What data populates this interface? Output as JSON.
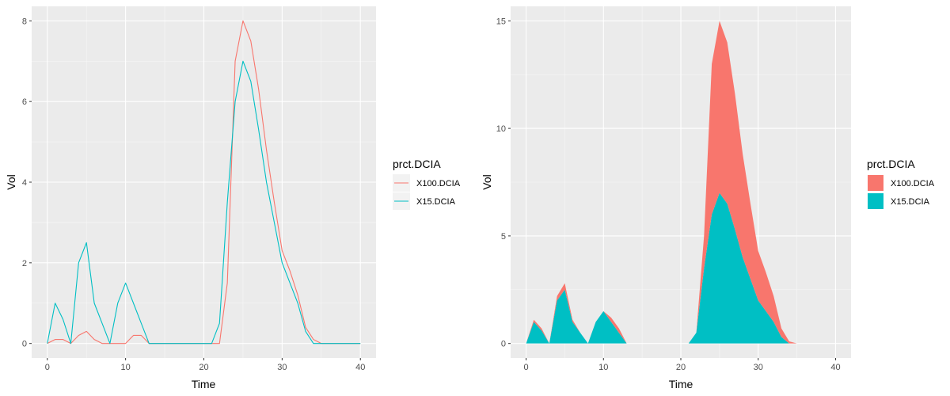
{
  "chart_data": [
    {
      "type": "line",
      "xlabel": "Time",
      "ylabel": "Vol",
      "xlim": [
        0,
        40
      ],
      "ylim": [
        0,
        8
      ],
      "xticks": [
        0,
        10,
        20,
        30,
        40
      ],
      "yticks": [
        0,
        2,
        4,
        6,
        8
      ],
      "grid": true,
      "legend": {
        "title": "prct.DCIA",
        "placement": "right"
      },
      "x": [
        0,
        1,
        2,
        3,
        4,
        5,
        6,
        7,
        8,
        9,
        10,
        11,
        12,
        13,
        14,
        15,
        16,
        17,
        18,
        19,
        20,
        21,
        22,
        23,
        24,
        25,
        26,
        27,
        28,
        29,
        30,
        31,
        32,
        33,
        34,
        35,
        36,
        37,
        38,
        39,
        40
      ],
      "series": [
        {
          "name": "X100.DCIA",
          "color": "#F8766D",
          "values": [
            0,
            0.1,
            0.1,
            0,
            0.2,
            0.3,
            0.1,
            0,
            0,
            0,
            0,
            0.2,
            0.2,
            0,
            0,
            0,
            0,
            0,
            0,
            0,
            0,
            0,
            0,
            1.5,
            7,
            8,
            7.5,
            6.3,
            4.8,
            3.5,
            2.3,
            1.8,
            1.2,
            0.4,
            0.1,
            0,
            0,
            0,
            0,
            0,
            0
          ]
        },
        {
          "name": "X15.DCIA",
          "color": "#00BFC4",
          "values": [
            0,
            1,
            0.6,
            0,
            2,
            2.5,
            1,
            0.5,
            0,
            1,
            1.5,
            1,
            0.5,
            0,
            0,
            0,
            0,
            0,
            0,
            0,
            0,
            0,
            0.5,
            3.5,
            6,
            7,
            6.5,
            5.3,
            4,
            3,
            2,
            1.5,
            1,
            0.3,
            0,
            0,
            0,
            0,
            0,
            0,
            0
          ]
        }
      ]
    },
    {
      "type": "area",
      "stacked": true,
      "xlabel": "Time",
      "ylabel": "Vol",
      "xlim": [
        0,
        40
      ],
      "ylim": [
        0,
        15
      ],
      "xticks": [
        0,
        10,
        20,
        30,
        40
      ],
      "yticks": [
        0,
        5,
        10,
        15
      ],
      "grid": true,
      "legend": {
        "title": "prct.DCIA",
        "placement": "right"
      },
      "x": [
        0,
        1,
        2,
        3,
        4,
        5,
        6,
        7,
        8,
        9,
        10,
        11,
        12,
        13,
        14,
        15,
        16,
        17,
        18,
        19,
        20,
        21,
        22,
        23,
        24,
        25,
        26,
        27,
        28,
        29,
        30,
        31,
        32,
        33,
        34,
        35,
        36,
        37,
        38,
        39,
        40
      ],
      "series": [
        {
          "name": "X100.DCIA",
          "color": "#F8766D",
          "values": [
            0,
            0.1,
            0.1,
            0,
            0.2,
            0.3,
            0.1,
            0,
            0,
            0,
            0,
            0.2,
            0.2,
            0,
            0,
            0,
            0,
            0,
            0,
            0,
            0,
            0,
            0,
            1.5,
            7,
            8,
            7.5,
            6.3,
            4.8,
            3.5,
            2.3,
            1.8,
            1.2,
            0.4,
            0.1,
            0,
            0,
            0,
            0,
            0,
            0
          ]
        },
        {
          "name": "X15.DCIA",
          "color": "#00BFC4",
          "values": [
            0,
            1,
            0.6,
            0,
            2,
            2.5,
            1,
            0.5,
            0,
            1,
            1.5,
            1,
            0.5,
            0,
            0,
            0,
            0,
            0,
            0,
            0,
            0,
            0,
            0.5,
            3.5,
            6,
            7,
            6.5,
            5.3,
            4,
            3,
            2,
            1.5,
            1,
            0.3,
            0,
            0,
            0,
            0,
            0,
            0,
            0
          ]
        }
      ]
    }
  ]
}
